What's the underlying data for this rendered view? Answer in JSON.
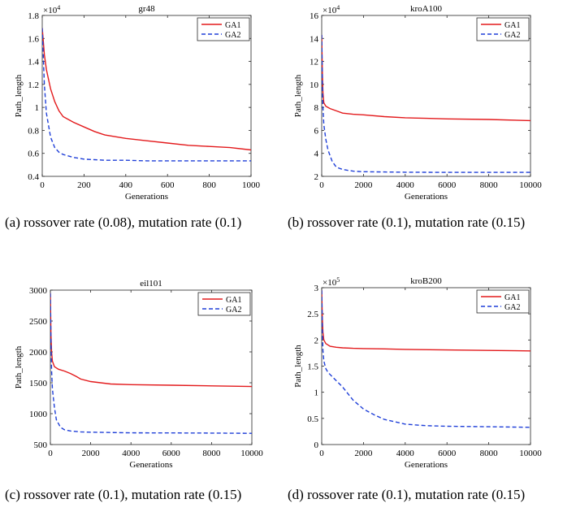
{
  "chart_data": [
    {
      "type": "line",
      "title": "gr48",
      "xlabel": "Generations",
      "ylabel": "Path_length",
      "exponent": "×10",
      "exponent_power": "4",
      "xlim": [
        0,
        1000
      ],
      "ylim": [
        0.4,
        1.8
      ],
      "xticks": [
        "0",
        "200",
        "400",
        "600",
        "800",
        "1000"
      ],
      "yticks": [
        "0.4",
        "0.6",
        "0.8",
        "1",
        "1.2",
        "1.4",
        "1.6",
        "1.8"
      ],
      "legend": "top-right",
      "series": [
        {
          "name": "GA1",
          "color": "#e31a1c",
          "dash": false,
          "x": [
            0,
            10,
            20,
            40,
            60,
            80,
            100,
            150,
            200,
            250,
            300,
            400,
            500,
            600,
            700,
            800,
            900,
            1000
          ],
          "y": [
            1.69,
            1.46,
            1.33,
            1.16,
            1.05,
            0.97,
            0.92,
            0.87,
            0.83,
            0.79,
            0.76,
            0.73,
            0.71,
            0.69,
            0.67,
            0.66,
            0.65,
            0.63
          ]
        },
        {
          "name": "GA2",
          "color": "#1f3fd8",
          "dash": true,
          "x": [
            0,
            10,
            20,
            40,
            60,
            80,
            100,
            150,
            200,
            250,
            300,
            400,
            500,
            600,
            800,
            1000
          ],
          "y": [
            1.69,
            1.2,
            0.95,
            0.74,
            0.65,
            0.61,
            0.59,
            0.565,
            0.55,
            0.545,
            0.54,
            0.54,
            0.535,
            0.535,
            0.535,
            0.535
          ]
        }
      ]
    },
    {
      "type": "line",
      "title": "kroA100",
      "xlabel": "Generations",
      "ylabel": "Path_length",
      "exponent": "×10",
      "exponent_power": "4",
      "xlim": [
        0,
        10000
      ],
      "ylim": [
        2,
        16
      ],
      "xticks": [
        "0",
        "2000",
        "4000",
        "6000",
        "8000",
        "10000"
      ],
      "yticks": [
        "2",
        "4",
        "6",
        "8",
        "10",
        "12",
        "14",
        "16"
      ],
      "legend": "top-right",
      "series": [
        {
          "name": "GA1",
          "color": "#e31a1c",
          "dash": false,
          "x": [
            0,
            30,
            60,
            100,
            200,
            400,
            700,
            1000,
            1500,
            2000,
            3000,
            4000,
            5000,
            6000,
            8000,
            10000
          ],
          "y": [
            14.3,
            11.0,
            9.3,
            8.4,
            8.1,
            7.9,
            7.7,
            7.5,
            7.4,
            7.35,
            7.2,
            7.1,
            7.05,
            7.0,
            6.95,
            6.85
          ]
        },
        {
          "name": "GA2",
          "color": "#1f3fd8",
          "dash": true,
          "x": [
            0,
            30,
            60,
            100,
            200,
            300,
            500,
            700,
            1000,
            1500,
            2000,
            3000,
            4000,
            6000,
            8000,
            10000
          ],
          "y": [
            14.3,
            10.0,
            8.0,
            6.5,
            5.2,
            4.3,
            3.3,
            2.8,
            2.6,
            2.45,
            2.4,
            2.38,
            2.36,
            2.35,
            2.35,
            2.35
          ]
        }
      ]
    },
    {
      "type": "line",
      "title": "eil101",
      "xlabel": "Generations",
      "ylabel": "Path_length",
      "xlim": [
        0,
        10000
      ],
      "ylim": [
        500,
        3000
      ],
      "xticks": [
        "0",
        "2000",
        "4000",
        "6000",
        "8000",
        "10000"
      ],
      "yticks": [
        "500",
        "1000",
        "1500",
        "2000",
        "2500",
        "3000"
      ],
      "legend": "top-right",
      "series": [
        {
          "name": "GA1",
          "color": "#e31a1c",
          "dash": false,
          "x": [
            0,
            30,
            60,
            100,
            200,
            400,
            700,
            1000,
            1300,
            1500,
            2000,
            3000,
            4000,
            6000,
            8000,
            10000
          ],
          "y": [
            2950,
            2300,
            2000,
            1850,
            1760,
            1720,
            1690,
            1650,
            1600,
            1560,
            1520,
            1480,
            1470,
            1460,
            1450,
            1440
          ]
        },
        {
          "name": "GA2",
          "color": "#1f3fd8",
          "dash": true,
          "x": [
            0,
            30,
            60,
            100,
            200,
            300,
            500,
            700,
            1000,
            1500,
            2000,
            3000,
            4000,
            6000,
            8000,
            10000
          ],
          "y": [
            2950,
            2200,
            1700,
            1400,
            1100,
            900,
            780,
            740,
            720,
            705,
            700,
            695,
            690,
            688,
            685,
            682
          ]
        }
      ]
    },
    {
      "type": "line",
      "title": "kroB200",
      "xlabel": "Generations",
      "ylabel": "Path_length",
      "exponent": "×10",
      "exponent_power": "5",
      "xlim": [
        0,
        10000
      ],
      "ylim": [
        0,
        3
      ],
      "xticks": [
        "0",
        "2000",
        "4000",
        "6000",
        "8000",
        "10000"
      ],
      "yticks": [
        "0",
        "0.5",
        "1",
        "1.5",
        "2",
        "2.5",
        "3"
      ],
      "legend": "top-right",
      "series": [
        {
          "name": "GA1",
          "color": "#e31a1c",
          "dash": false,
          "x": [
            0,
            30,
            60,
            100,
            200,
            400,
            700,
            1000,
            1500,
            2000,
            3000,
            4000,
            6000,
            8000,
            10000
          ],
          "y": [
            2.95,
            2.4,
            2.15,
            2.0,
            1.93,
            1.88,
            1.86,
            1.85,
            1.84,
            1.835,
            1.83,
            1.82,
            1.81,
            1.8,
            1.79
          ]
        },
        {
          "name": "GA2",
          "color": "#1f3fd8",
          "dash": true,
          "x": [
            0,
            30,
            60,
            100,
            200,
            300,
            500,
            1000,
            1500,
            2000,
            2500,
            3000,
            4000,
            5000,
            6000,
            8000,
            10000
          ],
          "y": [
            2.95,
            2.2,
            1.8,
            1.6,
            1.45,
            1.38,
            1.3,
            1.1,
            0.85,
            0.68,
            0.57,
            0.48,
            0.39,
            0.36,
            0.35,
            0.34,
            0.33
          ]
        }
      ]
    }
  ],
  "captions": [
    "(a) rossover rate (0.08), mutation rate (0.1)",
    "(b) rossover rate (0.1), mutation rate (0.15)",
    "(c) rossover rate (0.1), mutation rate (0.15)",
    "(d) rossover rate (0.1), mutation rate (0.15)"
  ]
}
